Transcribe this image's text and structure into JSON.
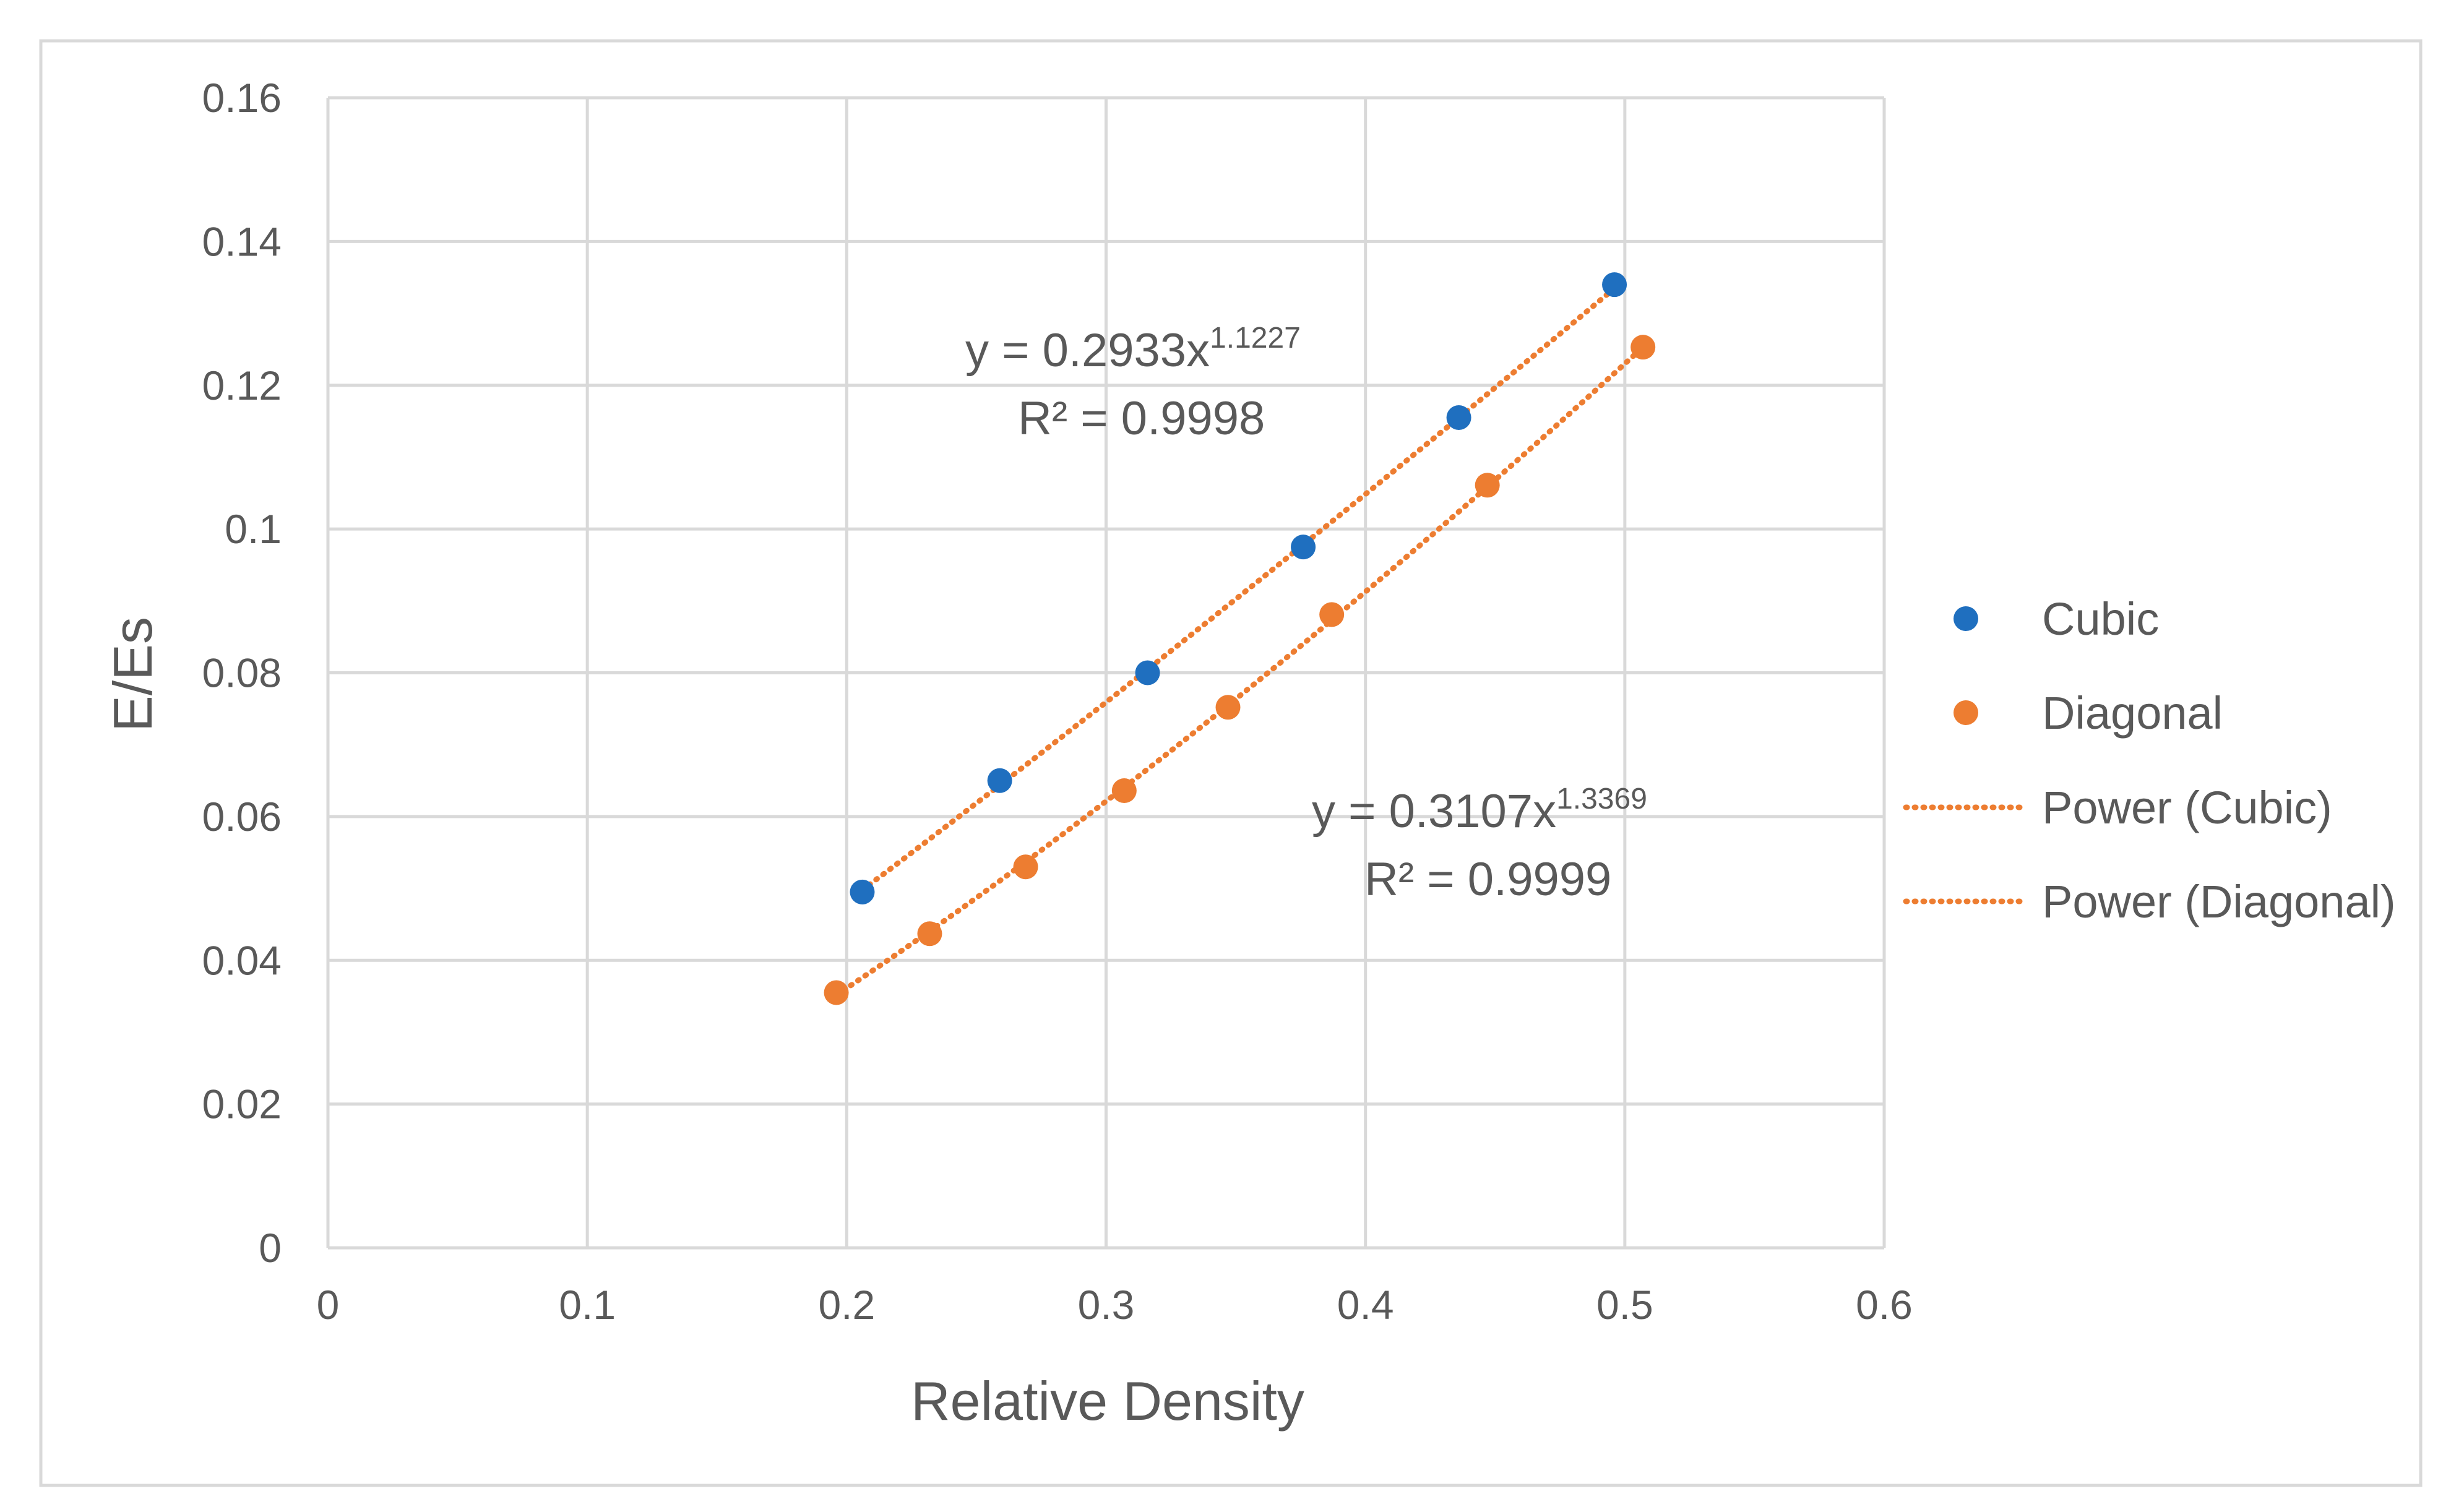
{
  "chart_data": {
    "type": "scatter",
    "title": "",
    "xlabel": "Relative Density",
    "ylabel": "E/Es",
    "xlim": [
      0,
      0.6
    ],
    "ylim": [
      0,
      0.16
    ],
    "x_ticks": [
      0,
      0.1,
      0.2,
      0.3,
      0.4,
      0.5,
      0.6
    ],
    "x_tick_labels": [
      "0",
      "0.1",
      "0.2",
      "0.3",
      "0.4",
      "0.5",
      "0.6"
    ],
    "y_ticks": [
      0,
      0.02,
      0.04,
      0.06,
      0.08,
      0.1,
      0.12,
      0.14,
      0.16
    ],
    "y_tick_labels": [
      "0",
      "0.02",
      "0.04",
      "0.06",
      "0.08",
      "0.1",
      "0.12",
      "0.14",
      "0.16"
    ],
    "grid": true,
    "legend_position": "right",
    "series": [
      {
        "name": "Cubic",
        "color": "#1F6FBF",
        "x": [
          0.206,
          0.259,
          0.316,
          0.376,
          0.436,
          0.496
        ],
        "y": [
          0.0495,
          0.065,
          0.08,
          0.0975,
          0.1155,
          0.134
        ]
      },
      {
        "name": "Diagonal",
        "color": "#ED7D31",
        "x": [
          0.196,
          0.232,
          0.269,
          0.307,
          0.347,
          0.387,
          0.447,
          0.507
        ],
        "y": [
          0.0355,
          0.0437,
          0.053,
          0.0636,
          0.0752,
          0.0881,
          0.1061,
          0.1253
        ]
      }
    ],
    "trendlines": [
      {
        "name": "Power (Cubic)",
        "type": "power",
        "coefficient": 0.2933,
        "exponent": 1.1227,
        "x_range": [
          0.206,
          0.496
        ],
        "color": "#ED7D31",
        "equation_base": "y = 0.2933x",
        "equation_exponent": "1.1227",
        "r_squared_label": "R² = 0.9998"
      },
      {
        "name": "Power (Diagonal)",
        "type": "power",
        "coefficient": 0.3107,
        "exponent": 1.3369,
        "x_range": [
          0.196,
          0.507
        ],
        "color": "#ED7D31",
        "equation_base": "y = 0.3107x",
        "equation_exponent": "1.3369",
        "r_squared_label": "R² = 0.9999"
      }
    ],
    "legend": [
      {
        "label": "Cubic",
        "kind": "marker",
        "color": "#1F6FBF"
      },
      {
        "label": "Diagonal",
        "kind": "marker",
        "color": "#ED7D31"
      },
      {
        "label": "Power (Cubic)",
        "kind": "dotted-line",
        "color": "#ED7D31"
      },
      {
        "label": "Power (Diagonal)",
        "kind": "dotted-line",
        "color": "#ED7D31"
      }
    ],
    "colors": {
      "grid": "#D9D9D9",
      "axis_text": "#595959",
      "frame_border": "#D9D9D9"
    }
  }
}
